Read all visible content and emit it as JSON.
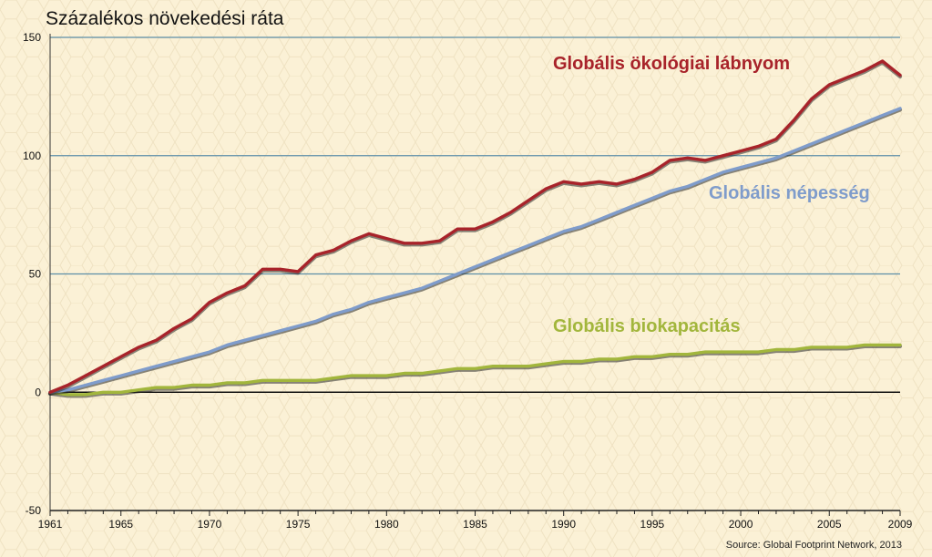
{
  "chart_data": {
    "type": "line",
    "title": "Százalékos növekedési ráta",
    "xlabel": "",
    "ylabel": "",
    "source": "Source: Global Footprint Network, 2013",
    "ylim": [
      -50,
      150
    ],
    "xlim": [
      1961,
      2009
    ],
    "yticks": [
      -50,
      0,
      50,
      100,
      150
    ],
    "xticks": [
      1961,
      1965,
      1970,
      1975,
      1980,
      1985,
      1990,
      1995,
      2000,
      2005,
      2009
    ],
    "grid": "horizontal",
    "x": [
      1961,
      1962,
      1963,
      1964,
      1965,
      1966,
      1967,
      1968,
      1969,
      1970,
      1971,
      1972,
      1973,
      1974,
      1975,
      1976,
      1977,
      1978,
      1979,
      1980,
      1981,
      1982,
      1983,
      1984,
      1985,
      1986,
      1987,
      1988,
      1989,
      1990,
      1991,
      1992,
      1993,
      1994,
      1995,
      1996,
      1997,
      1998,
      1999,
      2000,
      2001,
      2002,
      2003,
      2004,
      2005,
      2006,
      2007,
      2008,
      2009
    ],
    "series": [
      {
        "name": "Globális ökológiai lábnyom",
        "color": "#a8232a",
        "values": [
          0,
          3,
          7,
          11,
          15,
          19,
          22,
          27,
          31,
          38,
          42,
          45,
          52,
          52,
          51,
          58,
          60,
          64,
          67,
          65,
          63,
          63,
          64,
          69,
          69,
          72,
          76,
          81,
          86,
          89,
          88,
          89,
          88,
          90,
          93,
          98,
          99,
          98,
          100,
          102,
          104,
          107,
          115,
          124,
          130,
          133,
          136,
          140,
          134
        ]
      },
      {
        "name": "Globális népesség",
        "color": "#7f9ccb",
        "values": [
          0,
          1,
          3,
          5,
          7,
          9,
          11,
          13,
          15,
          17,
          20,
          22,
          24,
          26,
          28,
          30,
          33,
          35,
          38,
          40,
          42,
          44,
          47,
          50,
          53,
          56,
          59,
          62,
          65,
          68,
          70,
          73,
          76,
          79,
          82,
          85,
          87,
          90,
          93,
          95,
          97,
          99,
          102,
          105,
          108,
          111,
          114,
          117,
          120
        ]
      },
      {
        "name": "Globális biokapacitás",
        "color": "#a2b63c",
        "values": [
          0,
          -1,
          -1,
          0,
          0,
          1,
          2,
          2,
          3,
          3,
          4,
          4,
          5,
          5,
          5,
          5,
          6,
          7,
          7,
          7,
          8,
          8,
          9,
          10,
          10,
          11,
          11,
          11,
          12,
          13,
          13,
          14,
          14,
          15,
          15,
          16,
          16,
          17,
          17,
          17,
          17,
          18,
          18,
          19,
          19,
          19,
          20,
          20,
          20
        ]
      }
    ]
  }
}
